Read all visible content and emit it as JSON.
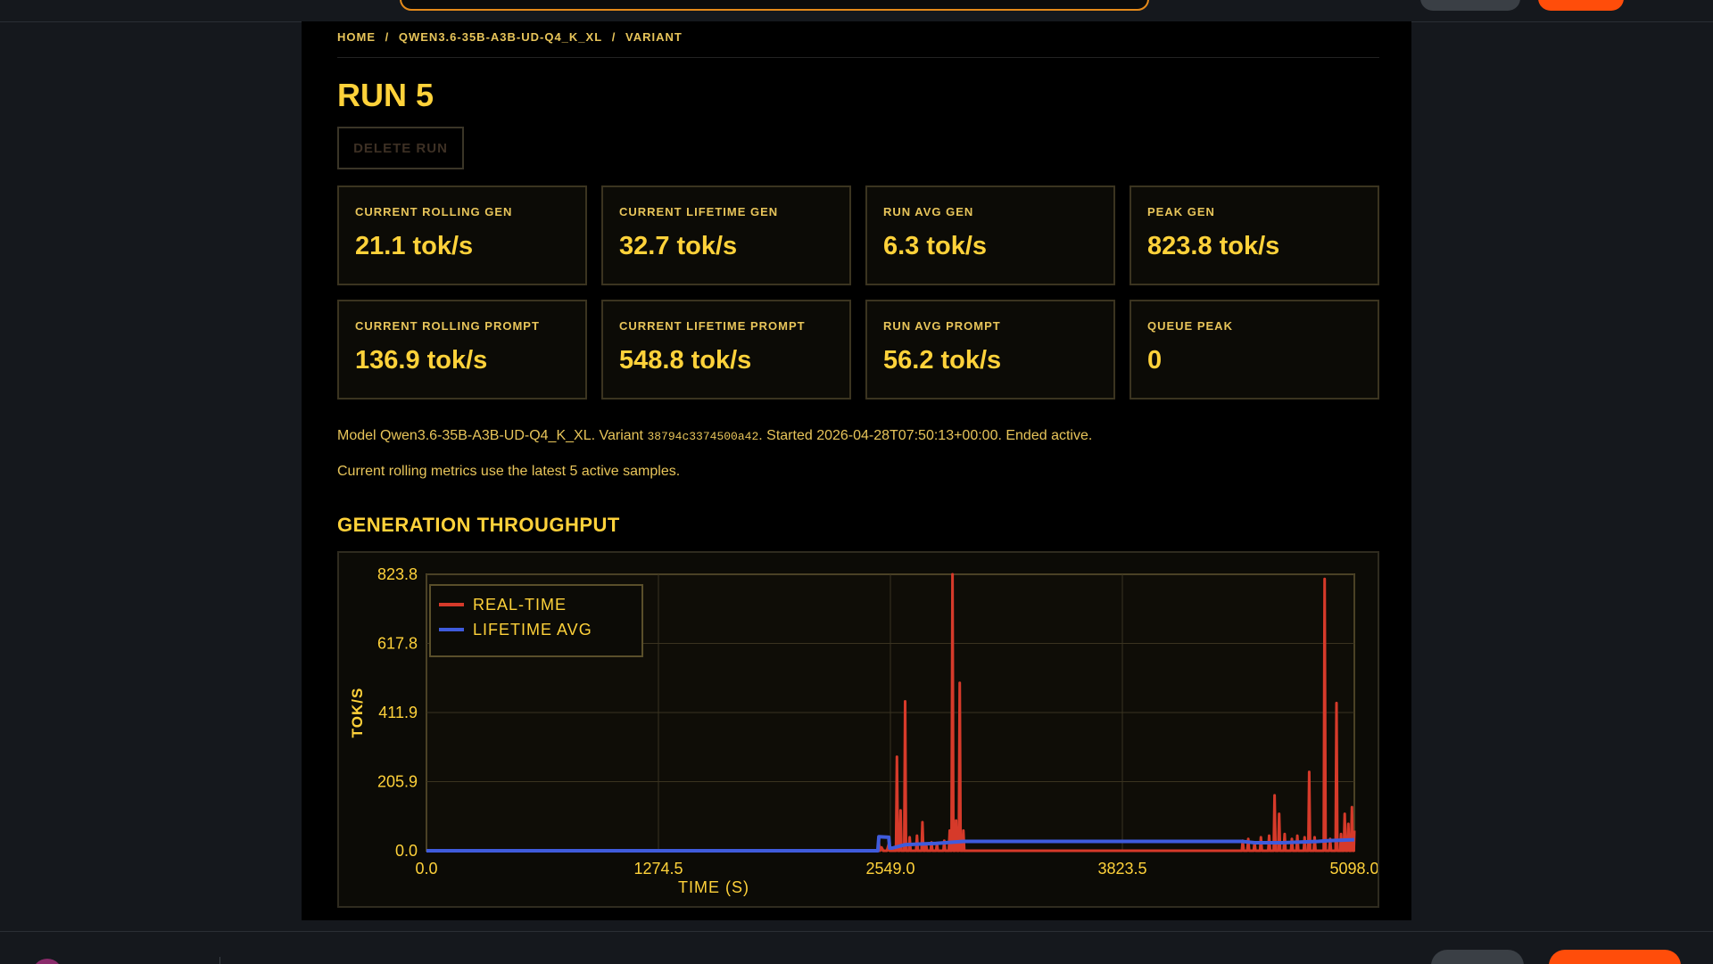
{
  "breadcrumb": [
    "HOME",
    "/",
    "QWEN3.6-35B-A3B-UD-Q4_K_XL",
    "/",
    "VARIANT"
  ],
  "page": {
    "title": "RUN 5",
    "delete_label": "DELETE RUN"
  },
  "stats": [
    {
      "label": "CURRENT ROLLING GEN",
      "value": "21.1 tok/s"
    },
    {
      "label": "CURRENT LIFETIME GEN",
      "value": "32.7 tok/s"
    },
    {
      "label": "RUN AVG GEN",
      "value": "6.3 tok/s"
    },
    {
      "label": "PEAK GEN",
      "value": "823.8 tok/s"
    },
    {
      "label": "CURRENT ROLLING PROMPT",
      "value": "136.9 tok/s"
    },
    {
      "label": "CURRENT LIFETIME PROMPT",
      "value": "548.8 tok/s"
    },
    {
      "label": "RUN AVG PROMPT",
      "value": "56.2 tok/s"
    },
    {
      "label": "QUEUE PEAK",
      "value": "0"
    }
  ],
  "meta": {
    "model_prefix": "Model ",
    "model": "Qwen3.6-35B-A3B-UD-Q4_K_XL",
    "variant_prefix": ". Variant ",
    "variant": "38794c3374500a42",
    "started_prefix": ". Started ",
    "started": "2026-04-28T07:50:13+00:00",
    "ended_prefix": ". Ended ",
    "ended": "active."
  },
  "note": "Current rolling metrics use the latest 5 active samples.",
  "section": {
    "title": "GENERATION THROUGHPUT"
  },
  "colors": {
    "accent": "#ffd23a",
    "realtime": "#d63a2a",
    "lifetime": "#3f5bdc",
    "brand_orange": "#ff4d0a"
  },
  "chart_data": {
    "type": "line",
    "xlabel": "TIME (S)",
    "ylabel": "TOK/S",
    "xlim": [
      0,
      5098.0
    ],
    "ylim": [
      0,
      823.8
    ],
    "xticks": [
      "0.0",
      "1274.5",
      "2549.0",
      "3823.5",
      "5098.0"
    ],
    "yticks": [
      "823.8",
      "617.8",
      "411.9",
      "205.9",
      "0.0"
    ],
    "legend_position": "top-left",
    "grid": true,
    "series": [
      {
        "name": "REAL-TIME",
        "color": "#d63a2a",
        "points": [
          [
            0,
            0
          ],
          [
            2480,
            0
          ],
          [
            2485,
            30
          ],
          [
            2490,
            0
          ],
          [
            2500,
            10
          ],
          [
            2510,
            0
          ],
          [
            2530,
            0
          ],
          [
            2540,
            20
          ],
          [
            2545,
            0
          ],
          [
            2580,
            0
          ],
          [
            2585,
            280
          ],
          [
            2590,
            0
          ],
          [
            2600,
            0
          ],
          [
            2605,
            120
          ],
          [
            2610,
            0
          ],
          [
            2625,
            0
          ],
          [
            2630,
            445
          ],
          [
            2635,
            0
          ],
          [
            2650,
            0
          ],
          [
            2655,
            40
          ],
          [
            2660,
            0
          ],
          [
            2690,
            0
          ],
          [
            2695,
            45
          ],
          [
            2700,
            0
          ],
          [
            2720,
            0
          ],
          [
            2725,
            85
          ],
          [
            2730,
            0
          ],
          [
            2740,
            0
          ],
          [
            2745,
            20
          ],
          [
            2750,
            0
          ],
          [
            2770,
            0
          ],
          [
            2775,
            25
          ],
          [
            2780,
            0
          ],
          [
            2800,
            0
          ],
          [
            2805,
            20
          ],
          [
            2810,
            0
          ],
          [
            2840,
            0
          ],
          [
            2845,
            30
          ],
          [
            2850,
            0
          ],
          [
            2870,
            0
          ],
          [
            2875,
            60
          ],
          [
            2880,
            0
          ],
          [
            2885,
            0
          ],
          [
            2890,
            823.8
          ],
          [
            2895,
            0
          ],
          [
            2905,
            0
          ],
          [
            2910,
            90
          ],
          [
            2915,
            0
          ],
          [
            2925,
            0
          ],
          [
            2930,
            500
          ],
          [
            2935,
            0
          ],
          [
            2945,
            0
          ],
          [
            2950,
            60
          ],
          [
            2955,
            0
          ],
          [
            4480,
            0
          ],
          [
            4485,
            30
          ],
          [
            4490,
            0
          ],
          [
            4510,
            0
          ],
          [
            4515,
            35
          ],
          [
            4520,
            0
          ],
          [
            4545,
            0
          ],
          [
            4550,
            25
          ],
          [
            4555,
            0
          ],
          [
            4580,
            0
          ],
          [
            4585,
            40
          ],
          [
            4590,
            0
          ],
          [
            4625,
            0
          ],
          [
            4630,
            45
          ],
          [
            4635,
            0
          ],
          [
            4655,
            0
          ],
          [
            4660,
            165
          ],
          [
            4665,
            0
          ],
          [
            4680,
            0
          ],
          [
            4685,
            110
          ],
          [
            4690,
            0
          ],
          [
            4710,
            0
          ],
          [
            4715,
            50
          ],
          [
            4720,
            0
          ],
          [
            4750,
            0
          ],
          [
            4755,
            35
          ],
          [
            4760,
            0
          ],
          [
            4780,
            0
          ],
          [
            4785,
            45
          ],
          [
            4790,
            0
          ],
          [
            4820,
            0
          ],
          [
            4825,
            40
          ],
          [
            4830,
            0
          ],
          [
            4845,
            0
          ],
          [
            4850,
            235
          ],
          [
            4855,
            0
          ],
          [
            4875,
            0
          ],
          [
            4880,
            40
          ],
          [
            4885,
            0
          ],
          [
            4930,
            0
          ],
          [
            4935,
            810
          ],
          [
            4940,
            0
          ],
          [
            4960,
            0
          ],
          [
            4965,
            35
          ],
          [
            4970,
            0
          ],
          [
            4995,
            0
          ],
          [
            5000,
            440
          ],
          [
            5005,
            0
          ],
          [
            5020,
            0
          ],
          [
            5025,
            50
          ],
          [
            5030,
            0
          ],
          [
            5040,
            0
          ],
          [
            5045,
            110
          ],
          [
            5050,
            0
          ],
          [
            5060,
            0
          ],
          [
            5065,
            80
          ],
          [
            5070,
            0
          ],
          [
            5080,
            0
          ],
          [
            5085,
            130
          ],
          [
            5090,
            0
          ],
          [
            5095,
            0
          ],
          [
            5098,
            60
          ]
        ]
      },
      {
        "name": "LIFETIME AVG",
        "color": "#3f5bdc",
        "points": [
          [
            0,
            0
          ],
          [
            2480,
            0
          ],
          [
            2486,
            42
          ],
          [
            2540,
            40
          ],
          [
            2545,
            8
          ],
          [
            2560,
            8
          ],
          [
            2630,
            18
          ],
          [
            2800,
            22
          ],
          [
            2950,
            28
          ],
          [
            3500,
            28
          ],
          [
            4480,
            28
          ],
          [
            4550,
            24
          ],
          [
            4700,
            24
          ],
          [
            4800,
            26
          ],
          [
            4900,
            28
          ],
          [
            4950,
            30
          ],
          [
            5098,
            33
          ]
        ]
      }
    ]
  }
}
